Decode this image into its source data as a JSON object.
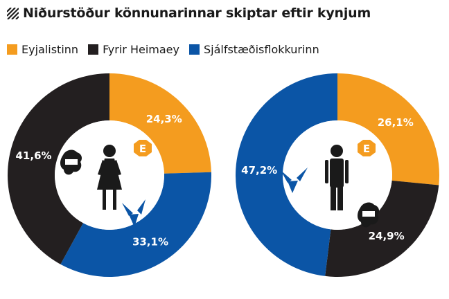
{
  "title": "Niðurstöður könnunarinnar skiptar eftir kynjum",
  "colors": {
    "eyjalistinn": "#f49c1f",
    "heimaey": "#231f20",
    "sjalfstaedis": "#0b55a6"
  },
  "legend": [
    {
      "label": "Eyjalistinn",
      "color": "#f49c1f"
    },
    {
      "label": "Fyrir Heimaey",
      "color": "#231f20"
    },
    {
      "label": "Sjálfstæðisflokkurinn",
      "color": "#0b55a6"
    }
  ],
  "chart_data": [
    {
      "type": "pie",
      "donut": true,
      "group": "women",
      "categories": [
        "Eyjalistinn",
        "Sjálfstæðisflokkurinn",
        "Fyrir Heimaey"
      ],
      "values": [
        24.3,
        33.1,
        41.6
      ],
      "labels": [
        "24,3%",
        "33,1%",
        "41,6%"
      ],
      "colors": [
        "#f49c1f",
        "#0b55a6",
        "#231f20"
      ]
    },
    {
      "type": "pie",
      "donut": true,
      "group": "men",
      "categories": [
        "Eyjalistinn",
        "Fyrir Heimaey",
        "Sjálfstæðisflokkurinn"
      ],
      "values": [
        26.1,
        24.9,
        47.2
      ],
      "labels": [
        "26,1%",
        "24,9%",
        "47,2%"
      ],
      "colors": [
        "#f49c1f",
        "#231f20",
        "#0b55a6"
      ]
    }
  ],
  "icons": [
    "female-figure-icon",
    "male-figure-icon",
    "eyjalistinn-logo-icon",
    "heimaey-logo-icon",
    "falcon-logo-icon"
  ],
  "logo_letter": "E"
}
